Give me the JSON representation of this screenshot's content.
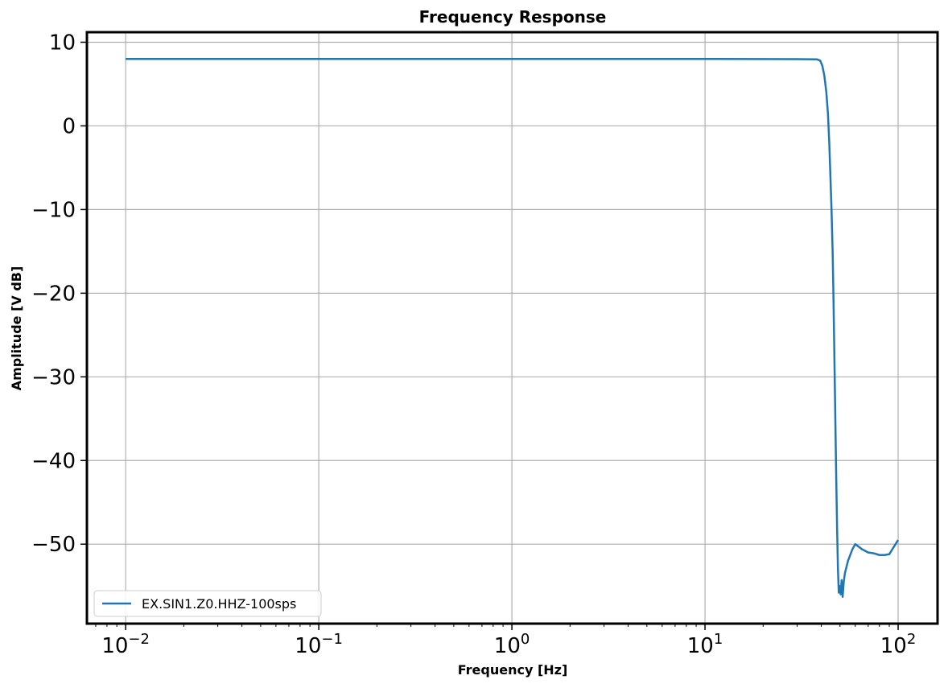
{
  "chart_data": {
    "type": "line",
    "title": "Frequency Response",
    "xlabel": "Frequency [Hz]",
    "ylabel": "Amplitude [V dB]",
    "x_scale": "log",
    "xlim": [
      0.0063,
      160
    ],
    "ylim": [
      -59.5,
      11.2
    ],
    "x_ticks": [
      {
        "value": 0.01,
        "base": "10",
        "exp": "−2"
      },
      {
        "value": 0.1,
        "base": "10",
        "exp": "−1"
      },
      {
        "value": 1,
        "base": "10",
        "exp": "0"
      },
      {
        "value": 10,
        "base": "10",
        "exp": "1"
      },
      {
        "value": 100,
        "base": "10",
        "exp": "2"
      }
    ],
    "y_ticks": [
      {
        "value": 10,
        "label": "10"
      },
      {
        "value": 0,
        "label": "0"
      },
      {
        "value": -10,
        "label": "−10"
      },
      {
        "value": -20,
        "label": "−20"
      },
      {
        "value": -30,
        "label": "−30"
      },
      {
        "value": -40,
        "label": "−40"
      },
      {
        "value": -50,
        "label": "−50"
      }
    ],
    "grid": true,
    "legend_position": "lower-left",
    "series": [
      {
        "name": "EX.SIN1.Z0.HHZ-100sps",
        "color": "#1f77b4",
        "x": [
          0.01,
          0.1,
          1,
          10,
          30,
          38,
          39.5,
          40.5,
          41.5,
          42.5,
          43.3,
          44,
          44.6,
          45.2,
          45.8,
          46.3,
          46.8,
          47.3,
          47.8,
          48.3,
          48.8,
          49.3,
          49.8,
          50.4,
          51.0,
          51.6,
          52.3,
          53,
          55,
          58,
          60,
          65,
          70,
          75,
          80,
          85,
          90,
          100
        ],
        "y": [
          8.0,
          8.0,
          8.0,
          8.0,
          7.98,
          7.95,
          7.8,
          7.2,
          6.0,
          4.0,
          1.5,
          -2.0,
          -6.0,
          -10.0,
          -15.0,
          -21.0,
          -28.0,
          -35.0,
          -42.0,
          -48.0,
          -53.0,
          -55.8,
          -55.0,
          -56.0,
          -54.3,
          -56.3,
          -54.5,
          -53.5,
          -52.0,
          -50.6,
          -50.0,
          -50.6,
          -51.0,
          -51.1,
          -51.3,
          -51.3,
          -51.2,
          -49.5
        ]
      }
    ]
  }
}
